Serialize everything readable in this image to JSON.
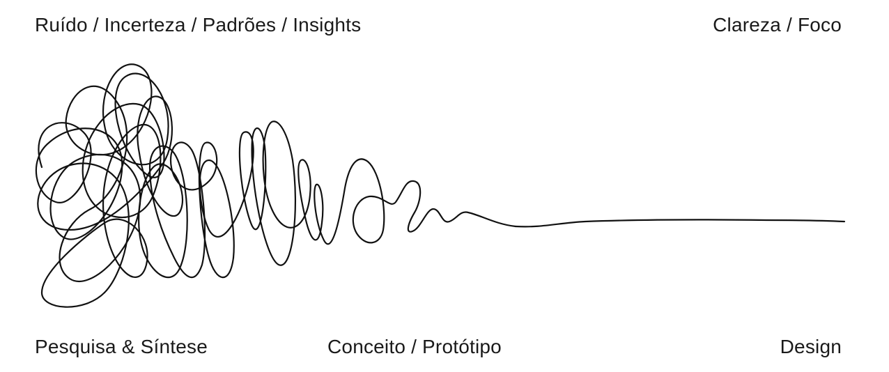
{
  "labels": {
    "top_left": "Ruído / Incerteza / Padrões / Insights",
    "top_right": "Clareza / Foco",
    "bottom_left": "Pesquisa & Síntese",
    "bottom_middle": "Conceito / Protótipo",
    "bottom_right": "Design"
  },
  "colors": {
    "line": "#111111",
    "text": "#1a1a1a",
    "background": "#ffffff"
  },
  "icon": "design-squiggle-line"
}
